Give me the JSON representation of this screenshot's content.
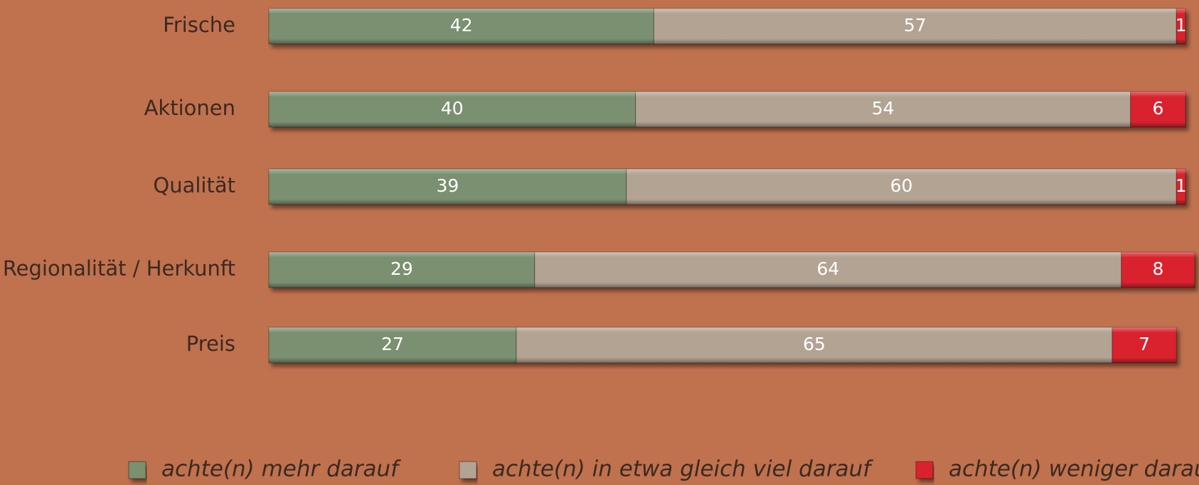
{
  "chart_data": {
    "type": "stacked-bar-horizontal",
    "categories": [
      "Frische",
      "Aktionen",
      "Qualität",
      "Regionalität / Herkunft",
      "Preis"
    ],
    "series": [
      {
        "name": "achte(n) mehr darauf",
        "color": "#7a9070",
        "values": [
          42,
          40,
          39,
          29,
          27
        ]
      },
      {
        "name": "achte(n) in etwa gleich viel darauf",
        "color": "#b3a393",
        "values": [
          57,
          54,
          60,
          64,
          65
        ]
      },
      {
        "name": "achte(n) weniger darauf",
        "color": "#d9232f",
        "values": [
          1,
          6,
          1,
          8,
          7
        ]
      }
    ],
    "legend": "bottom"
  }
}
